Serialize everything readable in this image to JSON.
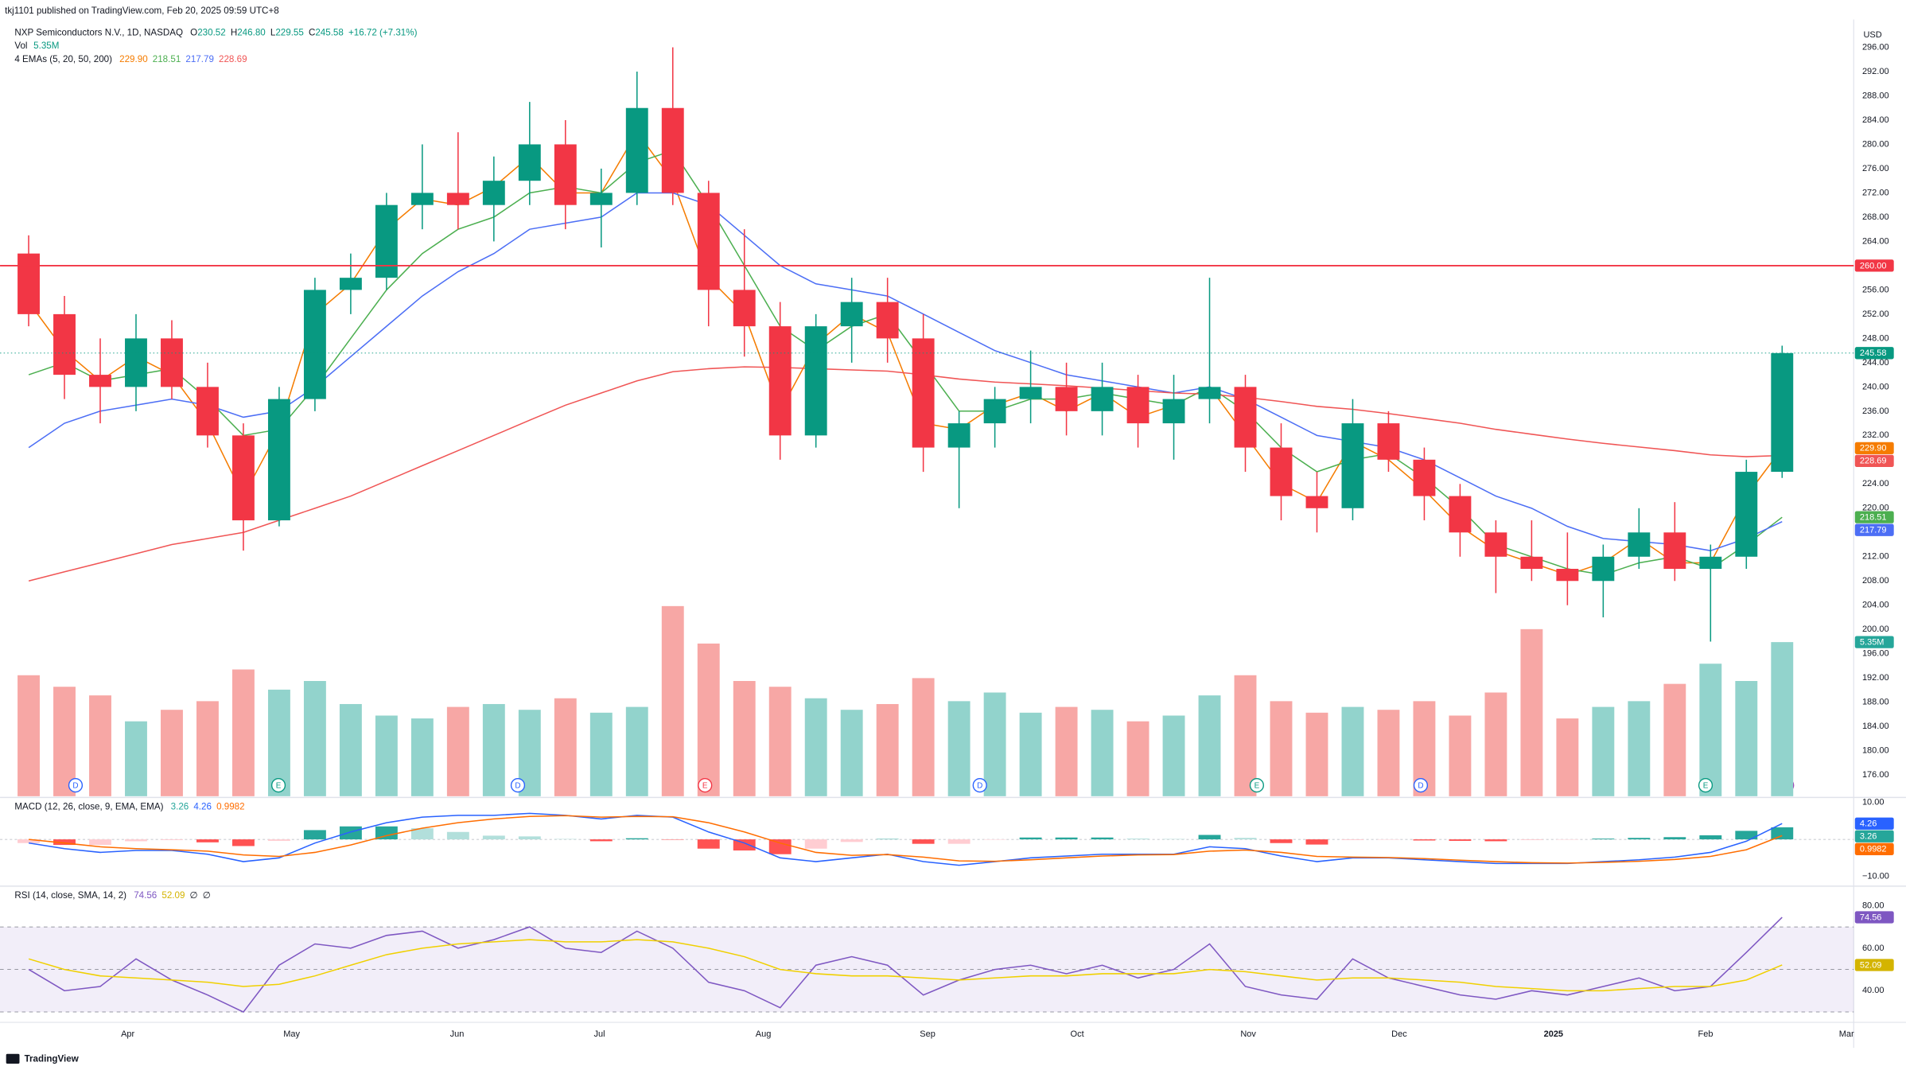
{
  "header": {
    "publisher": "tkj1101 published on TradingView.com, Feb 20, 2025 09:59 UTC+8",
    "symbol": "NXP Semiconductors N.V., 1D, NASDAQ",
    "ohlc_labels": [
      "O",
      "H",
      "L",
      "C"
    ],
    "ohlc_values": [
      "230.52",
      "246.80",
      "229.55",
      "245.58"
    ],
    "change": "+16.72 (+7.31%)",
    "currency": "USD",
    "logo": "TradingView"
  },
  "volume_legend": {
    "name": "Vol",
    "value": "5.35M"
  },
  "ema_legend": {
    "name": "4 EMAs (5, 20, 50, 200)",
    "values": [
      "229.90",
      "218.51",
      "217.79",
      "228.69"
    ],
    "colors": [
      "#f57c00",
      "#4caf50",
      "#4c6ef5",
      "#f05555"
    ]
  },
  "macd_legend": {
    "name": "MACD (12, 26, close, 9, EMA, EMA)",
    "values": [
      "3.26",
      "4.26",
      "0.9982"
    ],
    "colors": [
      "#26a69a",
      "#2962ff",
      "#ff6d00"
    ]
  },
  "rsi_legend": {
    "name": "RSI (14, close, SMA, 14, 2)",
    "values": [
      "74.56",
      "52.09",
      "∅",
      "∅"
    ],
    "colors": [
      "#7e57c2",
      "#d4b400",
      "#131722",
      "#131722"
    ]
  },
  "chart_data": [
    {
      "type": "candlestick",
      "xlim": [
        -0.8,
        51
      ],
      "xticks": [
        {
          "value": 2.77,
          "label": "Apr"
        },
        {
          "value": 7.35,
          "label": "May"
        },
        {
          "value": 11.97,
          "label": "Jun"
        },
        {
          "value": 15.95,
          "label": "Jul"
        },
        {
          "value": 20.53,
          "label": "Aug"
        },
        {
          "value": 25.12,
          "label": "Sep"
        },
        {
          "value": 29.3,
          "label": "Oct"
        },
        {
          "value": 34.08,
          "label": "Nov"
        },
        {
          "value": 38.3,
          "label": "Dec"
        },
        {
          "value": 42.61,
          "label": "2025"
        },
        {
          "value": 46.86,
          "label": "Feb"
        },
        {
          "value": 50.8,
          "label": "Mar"
        }
      ],
      "ylim": [
        172.5,
        300.2
      ],
      "yticks": [
        {
          "value": 296,
          "label": "296.00"
        },
        {
          "value": 292,
          "label": "292.00"
        },
        {
          "value": 288,
          "label": "288.00"
        },
        {
          "value": 284,
          "label": "284.00"
        },
        {
          "value": 280,
          "label": "280.00"
        },
        {
          "value": 276,
          "label": "276.00"
        },
        {
          "value": 272,
          "label": "272.00"
        },
        {
          "value": 268,
          "label": "268.00"
        },
        {
          "value": 264,
          "label": "264.00"
        },
        {
          "value": 260,
          "label": "260.00"
        },
        {
          "value": 256,
          "label": "256.00"
        },
        {
          "value": 252,
          "label": "252.00"
        },
        {
          "value": 248,
          "label": "248.00"
        },
        {
          "value": 244,
          "label": "244.00"
        },
        {
          "value": 240,
          "label": "240.00"
        },
        {
          "value": 236,
          "label": "236.00"
        },
        {
          "value": 232,
          "label": "232.00"
        },
        {
          "value": 228,
          "label": "228.00"
        },
        {
          "value": 224,
          "label": "224.00"
        },
        {
          "value": 220,
          "label": "220.00"
        },
        {
          "value": 216,
          "label": "216.00"
        },
        {
          "value": 212,
          "label": "212.00"
        },
        {
          "value": 208,
          "label": "208.00"
        },
        {
          "value": 204,
          "label": "204.00"
        },
        {
          "value": 200,
          "label": "200.00"
        },
        {
          "value": 196,
          "label": "196.00"
        },
        {
          "value": 192,
          "label": "192.00"
        },
        {
          "value": 188,
          "label": "188.00"
        },
        {
          "value": 184,
          "label": "184.00"
        },
        {
          "value": 180,
          "label": "180.00"
        },
        {
          "value": 176,
          "label": "176.00"
        }
      ],
      "open": [
        262,
        252,
        242,
        240,
        248,
        240,
        232,
        218,
        238,
        256,
        258,
        270,
        272,
        270,
        274,
        280,
        270,
        272,
        286,
        272,
        256,
        250,
        232,
        250,
        254,
        248,
        230,
        234,
        238,
        240,
        236,
        240,
        234,
        238,
        240,
        230,
        222,
        220,
        234,
        228,
        222,
        216,
        212,
        210,
        208,
        212,
        216,
        210,
        212,
        226
      ],
      "high": [
        265,
        255,
        248,
        252,
        251,
        244,
        234,
        240,
        258,
        262,
        272,
        280,
        282,
        278,
        287,
        284,
        276,
        292,
        296,
        274,
        266,
        254,
        252,
        258,
        258,
        252,
        236,
        240,
        246,
        244,
        244,
        242,
        242,
        258,
        242,
        234,
        226,
        238,
        236,
        230,
        224,
        218,
        218,
        216,
        214,
        220,
        221,
        214,
        228,
        246.8
      ],
      "low": [
        250,
        238,
        234,
        236,
        238,
        230,
        213,
        217,
        236,
        252,
        256,
        266,
        266,
        264,
        270,
        266,
        263,
        270,
        270,
        250,
        245,
        228,
        230,
        244,
        244,
        226,
        220,
        230,
        234,
        232,
        232,
        230,
        228,
        234,
        226,
        218,
        216,
        218,
        226,
        218,
        212,
        206,
        208,
        204,
        202,
        210,
        208,
        198,
        210,
        225
      ],
      "close": [
        252,
        242,
        240,
        248,
        240,
        232,
        218,
        238,
        256,
        258,
        270,
        272,
        270,
        274,
        280,
        270,
        272,
        286,
        272,
        256,
        250,
        232,
        250,
        254,
        248,
        230,
        234,
        238,
        240,
        236,
        240,
        234,
        238,
        240,
        230,
        222,
        220,
        234,
        228,
        222,
        216,
        212,
        210,
        208,
        212,
        216,
        210,
        212,
        226,
        245.58
      ],
      "up_color": "#089981",
      "down_color": "#f23645",
      "lines": [
        {
          "color": "#f57c00",
          "values": [
            254,
            246,
            241,
            245,
            242,
            234,
            222,
            233,
            252,
            257,
            266,
            271,
            270,
            273,
            278,
            272,
            272,
            282,
            274,
            258,
            252,
            236,
            247,
            252,
            249,
            234,
            233,
            237,
            239,
            236,
            239,
            235,
            237,
            240,
            232,
            224,
            221,
            231,
            228,
            223,
            217,
            213,
            211,
            209,
            211,
            215,
            211,
            211,
            222,
            229.9
          ]
        },
        {
          "color": "#4caf50",
          "values": [
            242,
            244,
            241,
            242,
            243,
            238,
            232,
            233,
            240,
            248,
            256,
            262,
            266,
            268,
            272,
            273,
            272,
            277,
            279,
            270,
            260,
            250,
            246,
            250,
            252,
            244,
            236,
            236,
            238,
            238,
            239,
            238,
            237,
            240,
            236,
            230,
            226,
            228,
            229,
            225,
            220,
            214,
            212,
            210,
            209,
            211,
            212,
            210,
            214,
            218.51
          ]
        },
        {
          "color": "#4c6ef5",
          "values": [
            230,
            234,
            236,
            237,
            238,
            237,
            235,
            236,
            240,
            245,
            250,
            255,
            259,
            262,
            266,
            267,
            268,
            272,
            272,
            270,
            265,
            260,
            257,
            256,
            255,
            252,
            249,
            246,
            244,
            242,
            241,
            240,
            239,
            240,
            238,
            235,
            232,
            231,
            230,
            228,
            225,
            222,
            220,
            217,
            215,
            214.5,
            214,
            213,
            215,
            217.79
          ]
        },
        {
          "color": "#f05555",
          "values": [
            208,
            209.5,
            211,
            212.5,
            214,
            215,
            216,
            218,
            220,
            222,
            224.5,
            227,
            229.5,
            232,
            234.5,
            237,
            239,
            241,
            242.5,
            243,
            243.3,
            243.2,
            243,
            242.8,
            242.6,
            242,
            241.3,
            240.8,
            240.5,
            240.2,
            239.8,
            239.4,
            239,
            238.8,
            238.3,
            237.6,
            236.8,
            236.3,
            235.6,
            234.8,
            234,
            233,
            232.2,
            231.4,
            230.7,
            230.1,
            229.5,
            228.8,
            228.5,
            228.69
          ]
        }
      ],
      "volume": {
        "values": [
          4200000,
          3800000,
          3500000,
          2600000,
          3000000,
          3300000,
          4400000,
          3700000,
          4000000,
          3200000,
          2800000,
          2700000,
          3100000,
          3200000,
          3000000,
          3400000,
          2900000,
          3100000,
          6600000,
          5300000,
          4000000,
          3800000,
          3400000,
          3000000,
          3200000,
          4100000,
          3300000,
          3600000,
          2900000,
          3100000,
          3000000,
          2600000,
          2800000,
          3500000,
          4200000,
          3300000,
          2900000,
          3100000,
          3000000,
          3300000,
          2800000,
          3600000,
          5800000,
          2700000,
          3100000,
          3300000,
          3900000,
          4600000,
          4000000,
          5350000
        ],
        "y2lim": [
          0,
          26880000
        ],
        "up_color": "#92d3cc",
        "down_color": "#f7a7a5",
        "tag": {
          "value": 5350000,
          "label": "5.35M",
          "color": "#26a69a"
        }
      },
      "hline": {
        "value": 260,
        "label": "260.00",
        "color": "#f23645"
      },
      "tags": [
        {
          "value": 229.9,
          "label": "229.90",
          "color": "#f57c00"
        },
        {
          "value": 228.69,
          "label": "228.69",
          "color": "#f05555"
        },
        {
          "value": 218.51,
          "label": "218.51",
          "color": "#4caf50"
        },
        {
          "value": 217.79,
          "label": "217.79",
          "color": "#4c6ef5"
        }
      ],
      "events": {
        "x": [
          1.31,
          6.98,
          13.67,
          18.9,
          26.58,
          34.32,
          38.9,
          46.86
        ],
        "labels": [
          "D",
          "E",
          "D",
          "E",
          "D",
          "E",
          "D",
          "E"
        ],
        "colors": [
          "#2962ff",
          "#089981",
          "#2962ff",
          "#f23645",
          "#2962ff",
          "#089981",
          "#2962ff",
          "#089981"
        ]
      }
    },
    {
      "type": "macd",
      "xlim": [
        -0.8,
        51
      ],
      "ylim": [
        -12.3,
        10.98
      ],
      "yticks": [
        {
          "value": 10,
          "label": "10.00"
        },
        {
          "value": -10,
          "label": "−10.00"
        }
      ],
      "histogram": [
        -1,
        -1.5,
        -1.5,
        -0.5,
        -0.2,
        -0.8,
        -1.8,
        -0.4,
        2.5,
        3.5,
        3.5,
        3,
        2,
        1,
        0.8,
        0.1,
        -0.5,
        0.3,
        -0.1,
        -2.5,
        -3,
        -4,
        -2.5,
        -0.7,
        0.1,
        -1.2,
        -1.2,
        -0.1,
        0.5,
        0.5,
        0.5,
        0.2,
        0.1,
        1.2,
        0.4,
        -1,
        -1.4,
        -0.2,
        -0.1,
        -0.3,
        -0.4,
        -0.5,
        -0.2,
        -0.1,
        0.2,
        0.4,
        0.6,
        1.1,
        2.3,
        3.26
      ],
      "hist_colors": [
        "#26a69a",
        "#b2dfdb",
        "#ffcdd2",
        "#ff5252"
      ],
      "series": [
        {
          "color": "#2962ff",
          "values": [
            -1,
            -2.5,
            -3.5,
            -3,
            -3,
            -4,
            -6,
            -5,
            -1,
            2,
            4.5,
            6,
            6.5,
            6.5,
            7,
            6.5,
            5.5,
            6.5,
            6,
            2,
            -1,
            -5,
            -6,
            -5,
            -4,
            -6,
            -7,
            -6,
            -5,
            -4.5,
            -4,
            -4,
            -4,
            -2,
            -2.5,
            -4.5,
            -6,
            -5,
            -5,
            -5.5,
            -6,
            -6.5,
            -6.5,
            -6.5,
            -6,
            -5.5,
            -4.8,
            -3.5,
            -0.5,
            4.26
          ]
        },
        {
          "color": "#ff6d00",
          "values": [
            0,
            -1,
            -2,
            -2.5,
            -2.8,
            -3.2,
            -4.2,
            -4.6,
            -3.5,
            -1.5,
            1,
            3,
            4.5,
            5.5,
            6.2,
            6.4,
            6,
            6.2,
            6.1,
            4.5,
            2,
            -1,
            -3.5,
            -4.3,
            -4.1,
            -4.8,
            -5.8,
            -5.9,
            -5.5,
            -5,
            -4.5,
            -4.2,
            -4.1,
            -3.2,
            -2.9,
            -3.5,
            -4.6,
            -4.8,
            -4.9,
            -5.2,
            -5.6,
            -6,
            -6.3,
            -6.4,
            -6.2,
            -5.9,
            -5.4,
            -4.6,
            -2.8,
            0.9982
          ]
        }
      ],
      "tags": [
        {
          "value": 4.26,
          "color": "#2962ff"
        },
        {
          "value": 3.26,
          "color": "#26a69a"
        },
        {
          "value": 0.9982,
          "color": "#ff6d00"
        }
      ]
    },
    {
      "type": "rsi",
      "xlim": [
        -0.8,
        51
      ],
      "ylim": [
        25.7,
        88.6
      ],
      "yticks": [
        {
          "value": 80,
          "label": "80.00"
        },
        {
          "value": 60,
          "label": "60.00"
        },
        {
          "value": 40,
          "label": "40.00"
        }
      ],
      "bands": [
        70,
        50,
        30
      ],
      "band_color": "#7e57c2",
      "series": [
        {
          "color": "#7e57c2",
          "values": [
            50,
            40,
            42,
            55,
            45,
            38,
            30,
            52,
            62,
            60,
            66,
            68,
            60,
            64,
            70,
            60,
            58,
            68,
            60,
            44,
            40,
            32,
            52,
            56,
            52,
            38,
            45,
            50,
            52,
            48,
            52,
            46,
            50,
            62,
            42,
            38,
            36,
            55,
            46,
            42,
            38,
            36,
            40,
            38,
            42,
            46,
            40,
            42,
            58,
            74.56
          ]
        },
        {
          "color": "#f0d000",
          "values": [
            55,
            50,
            47,
            46,
            45,
            44,
            42,
            43,
            47,
            52,
            57,
            60,
            62,
            63,
            64,
            63,
            63,
            64,
            63,
            60,
            56,
            50,
            48,
            47,
            47,
            46,
            45,
            46,
            47,
            47,
            48,
            48,
            48,
            50,
            49,
            47,
            45,
            46,
            46,
            45,
            44,
            42,
            41,
            40,
            40,
            41,
            42,
            42,
            45,
            52.09
          ]
        }
      ],
      "tags": [
        {
          "value": 74.56,
          "color": "#7e57c2"
        },
        {
          "value": 52.09,
          "color": "#d4b400"
        }
      ]
    }
  ]
}
